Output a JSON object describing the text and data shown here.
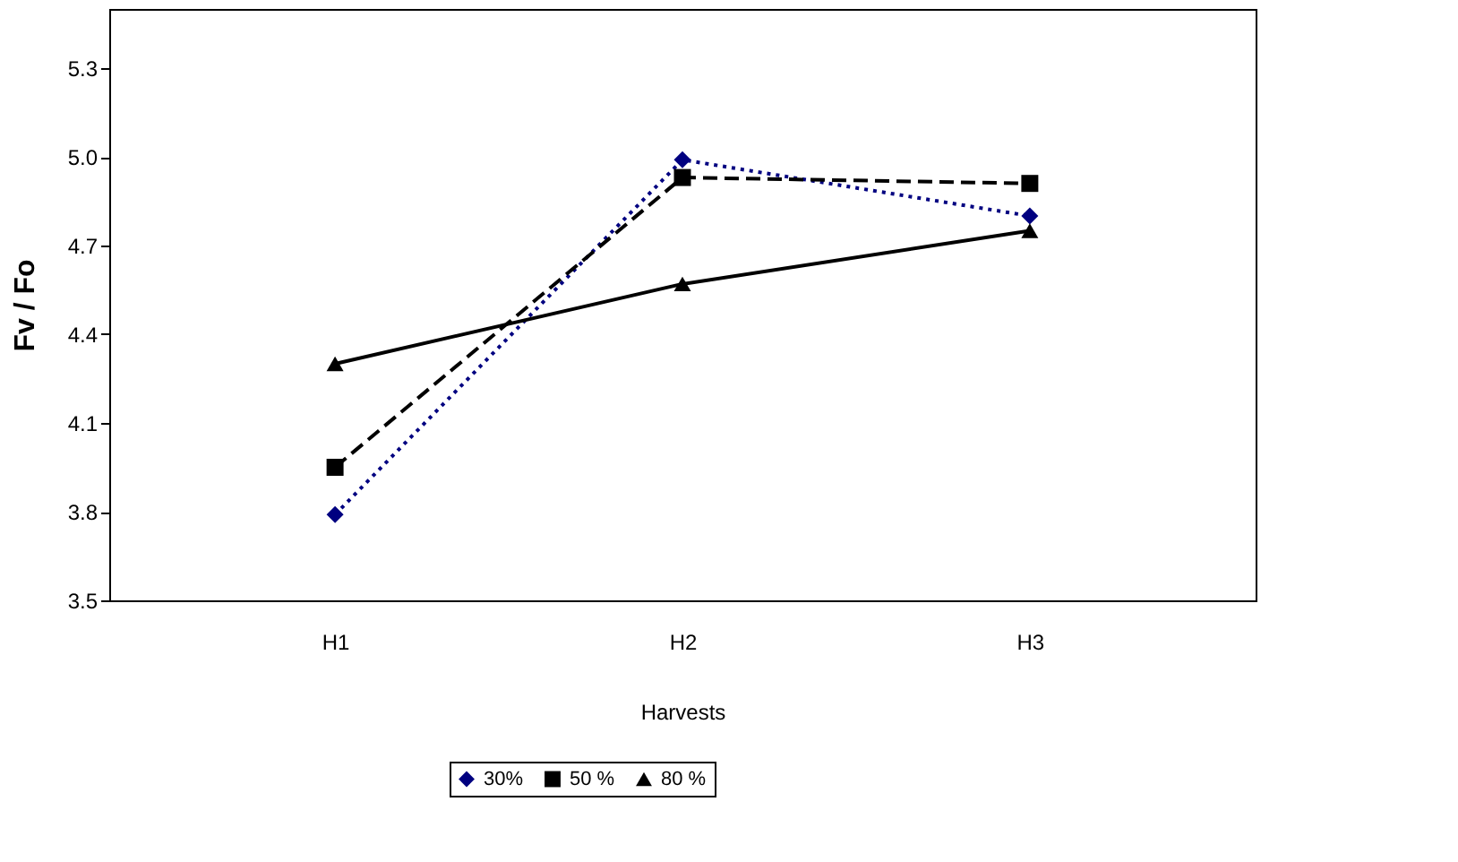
{
  "chart_data": {
    "type": "line",
    "xlabel": "Harvests",
    "ylabel": "Fv / Fo",
    "categories": [
      "H1",
      "H2",
      "H3"
    ],
    "series": [
      {
        "name": "30%",
        "color": "#000080",
        "values": [
          3.79,
          4.99,
          4.8
        ],
        "marker": "diamond",
        "line_style": "dotted"
      },
      {
        "name": "50 %",
        "color": "#000000",
        "values": [
          3.95,
          4.93,
          4.91
        ],
        "marker": "square",
        "line_style": "dashed"
      },
      {
        "name": "80 %",
        "color": "#000000",
        "values": [
          4.3,
          4.57,
          4.75
        ],
        "marker": "triangle",
        "line_style": "solid"
      }
    ],
    "ylim": [
      3.5,
      5.5
    ],
    "yticks": [
      {
        "value": 3.5,
        "label": "3.5"
      },
      {
        "value": 3.8,
        "label": "3.8"
      },
      {
        "value": 4.1,
        "label": "4.1"
      },
      {
        "value": 4.4,
        "label": "4.4"
      },
      {
        "value": 4.7,
        "label": "4.7"
      },
      {
        "value": 5.0,
        "label": "5.0"
      },
      {
        "value": 5.3,
        "label": "5.3"
      }
    ],
    "grid": false,
    "legend": "bottom"
  }
}
